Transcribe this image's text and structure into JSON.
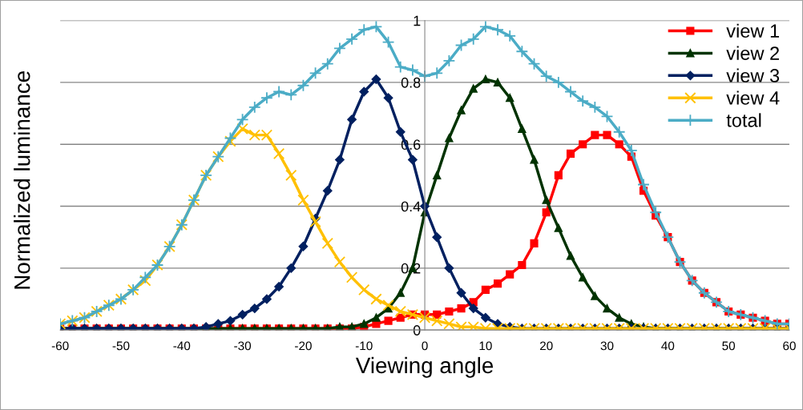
{
  "chart_data": {
    "type": "line",
    "xlabel": "Viewing angle",
    "ylabel": "Normalized luminance",
    "x": [
      -60,
      -58,
      -56,
      -54,
      -52,
      -50,
      -48,
      -46,
      -44,
      -42,
      -40,
      -38,
      -36,
      -34,
      -32,
      -30,
      -28,
      -26,
      -24,
      -22,
      -20,
      -18,
      -16,
      -14,
      -12,
      -10,
      -8,
      -6,
      -4,
      -2,
      0,
      2,
      4,
      6,
      8,
      10,
      12,
      14,
      16,
      18,
      20,
      22,
      24,
      26,
      28,
      30,
      32,
      34,
      36,
      38,
      40,
      42,
      44,
      46,
      48,
      50,
      52,
      54,
      56,
      58,
      60
    ],
    "series": [
      {
        "name": "view 1",
        "color": "#ff0000",
        "marker": "square",
        "values": [
          0.005,
          0.005,
          0.005,
          0.005,
          0.005,
          0.005,
          0.005,
          0.005,
          0.005,
          0.005,
          0.005,
          0.005,
          0.005,
          0.005,
          0.005,
          0.005,
          0.005,
          0.005,
          0.005,
          0.005,
          0.005,
          0.005,
          0.005,
          0.005,
          0.005,
          0.01,
          0.02,
          0.03,
          0.04,
          0.05,
          0.05,
          0.05,
          0.06,
          0.07,
          0.09,
          0.13,
          0.15,
          0.18,
          0.21,
          0.28,
          0.38,
          0.5,
          0.57,
          0.6,
          0.63,
          0.63,
          0.6,
          0.56,
          0.45,
          0.37,
          0.3,
          0.22,
          0.16,
          0.12,
          0.09,
          0.06,
          0.05,
          0.04,
          0.03,
          0.02,
          0.02
        ]
      },
      {
        "name": "view 2",
        "color": "#003300",
        "marker": "triangle",
        "values": [
          0.005,
          0.005,
          0.005,
          0.005,
          0.005,
          0.005,
          0.005,
          0.005,
          0.005,
          0.005,
          0.005,
          0.005,
          0.005,
          0.005,
          0.005,
          0.005,
          0.005,
          0.005,
          0.005,
          0.005,
          0.005,
          0.005,
          0.005,
          0.01,
          0.01,
          0.02,
          0.04,
          0.07,
          0.12,
          0.2,
          0.38,
          0.5,
          0.62,
          0.71,
          0.78,
          0.81,
          0.8,
          0.75,
          0.65,
          0.55,
          0.42,
          0.33,
          0.24,
          0.17,
          0.11,
          0.07,
          0.04,
          0.02,
          0.01,
          0.005,
          0.005,
          0.005,
          0.005,
          0.005,
          0.005,
          0.005,
          0.005,
          0.005,
          0.005,
          0.005,
          0.005
        ]
      },
      {
        "name": "view 3",
        "color": "#002060",
        "marker": "diamond",
        "values": [
          0.005,
          0.005,
          0.005,
          0.005,
          0.005,
          0.005,
          0.005,
          0.005,
          0.005,
          0.005,
          0.005,
          0.005,
          0.01,
          0.02,
          0.03,
          0.05,
          0.07,
          0.1,
          0.14,
          0.2,
          0.27,
          0.36,
          0.45,
          0.55,
          0.68,
          0.77,
          0.81,
          0.75,
          0.64,
          0.55,
          0.4,
          0.3,
          0.2,
          0.12,
          0.07,
          0.04,
          0.02,
          0.01,
          0.005,
          0.005,
          0.005,
          0.005,
          0.005,
          0.005,
          0.005,
          0.005,
          0.005,
          0.005,
          0.005,
          0.005,
          0.005,
          0.005,
          0.005,
          0.005,
          0.005,
          0.005,
          0.005,
          0.005,
          0.005,
          0.005,
          0.005
        ]
      },
      {
        "name": "view 4",
        "color": "#ffc000",
        "marker": "cross",
        "values": [
          0.02,
          0.03,
          0.04,
          0.06,
          0.08,
          0.1,
          0.13,
          0.16,
          0.21,
          0.27,
          0.34,
          0.42,
          0.5,
          0.56,
          0.61,
          0.65,
          0.63,
          0.63,
          0.57,
          0.5,
          0.42,
          0.35,
          0.28,
          0.22,
          0.17,
          0.13,
          0.1,
          0.08,
          0.06,
          0.05,
          0.04,
          0.03,
          0.02,
          0.01,
          0.01,
          0.005,
          0.005,
          0.005,
          0.005,
          0.005,
          0.005,
          0.005,
          0.005,
          0.005,
          0.005,
          0.005,
          0.005,
          0.005,
          0.005,
          0.005,
          0.005,
          0.005,
          0.005,
          0.005,
          0.005,
          0.005,
          0.005,
          0.005,
          0.005,
          0.005,
          0.005
        ]
      },
      {
        "name": "total",
        "color": "#4bacc6",
        "marker": "plus",
        "values": [
          0.02,
          0.03,
          0.04,
          0.06,
          0.08,
          0.1,
          0.13,
          0.17,
          0.21,
          0.27,
          0.34,
          0.42,
          0.5,
          0.56,
          0.62,
          0.68,
          0.72,
          0.75,
          0.77,
          0.76,
          0.79,
          0.83,
          0.86,
          0.91,
          0.94,
          0.97,
          0.98,
          0.93,
          0.85,
          0.84,
          0.82,
          0.83,
          0.87,
          0.92,
          0.94,
          0.98,
          0.97,
          0.95,
          0.9,
          0.86,
          0.82,
          0.8,
          0.77,
          0.74,
          0.72,
          0.69,
          0.64,
          0.58,
          0.47,
          0.38,
          0.3,
          0.22,
          0.16,
          0.12,
          0.09,
          0.06,
          0.05,
          0.04,
          0.03,
          0.02,
          0.02
        ]
      }
    ],
    "xlim": [
      -60,
      60
    ],
    "xticks": [
      -60,
      -50,
      -40,
      -30,
      -20,
      -10,
      0,
      10,
      20,
      30,
      40,
      50,
      60
    ],
    "ylim": [
      0,
      1
    ],
    "yticks": [
      0,
      0.2,
      0.4,
      0.6,
      0.8,
      1
    ],
    "grid": "y",
    "legend": "top right",
    "line_style": "solid"
  }
}
